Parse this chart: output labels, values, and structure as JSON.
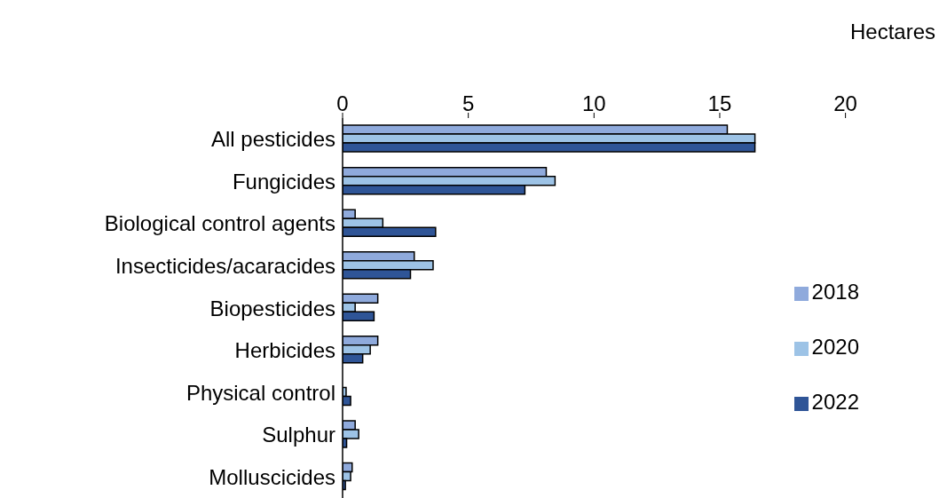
{
  "chart_data": {
    "type": "bar",
    "orientation": "horizontal",
    "xlabel": "Hectares",
    "categories": [
      "All pesticides",
      "Fungicides",
      "Biological control agents",
      "Insecticides/acaracides",
      "Biopesticides",
      "Herbicides",
      "Physical control",
      "Sulphur",
      "Molluscicides"
    ],
    "series": [
      {
        "name": "2018",
        "color": "#8faadc",
        "values": [
          15.3,
          8.1,
          0.5,
          2.85,
          1.4,
          1.4,
          null,
          0.5,
          0.38
        ]
      },
      {
        "name": "2020",
        "color": "#9dc3e6",
        "values": [
          16.4,
          8.45,
          1.6,
          3.6,
          0.5,
          1.1,
          0.14,
          0.64,
          0.32
        ]
      },
      {
        "name": "2022",
        "color": "#2f5597",
        "values": [
          16.4,
          7.25,
          3.7,
          2.7,
          1.25,
          0.8,
          0.32,
          0.16,
          0.11
        ]
      }
    ],
    "xlim": [
      0,
      20
    ],
    "xticks": [
      0,
      5,
      10,
      15,
      20
    ],
    "grid": false,
    "legend": "right"
  }
}
